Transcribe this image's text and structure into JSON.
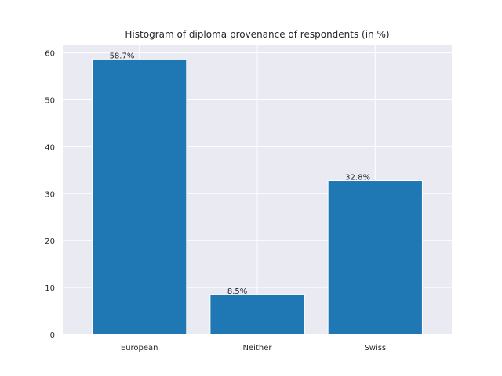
{
  "chart_data": {
    "type": "bar",
    "title": "Histogram of diploma provenance of respondents (in %)",
    "xlabel": "",
    "ylabel": "",
    "categories": [
      "European",
      "Neither",
      "Swiss"
    ],
    "values": [
      58.7,
      8.5,
      32.8
    ],
    "data_labels": [
      "58.7%",
      "8.5%",
      "32.8%"
    ],
    "ylim": [
      0,
      61.6
    ],
    "yticks": [
      0,
      10,
      20,
      30,
      40,
      50,
      60
    ],
    "grid": true,
    "colors": {
      "bar": "#1f77b4",
      "background": "#eaeaf2",
      "grid": "#ffffff"
    }
  }
}
